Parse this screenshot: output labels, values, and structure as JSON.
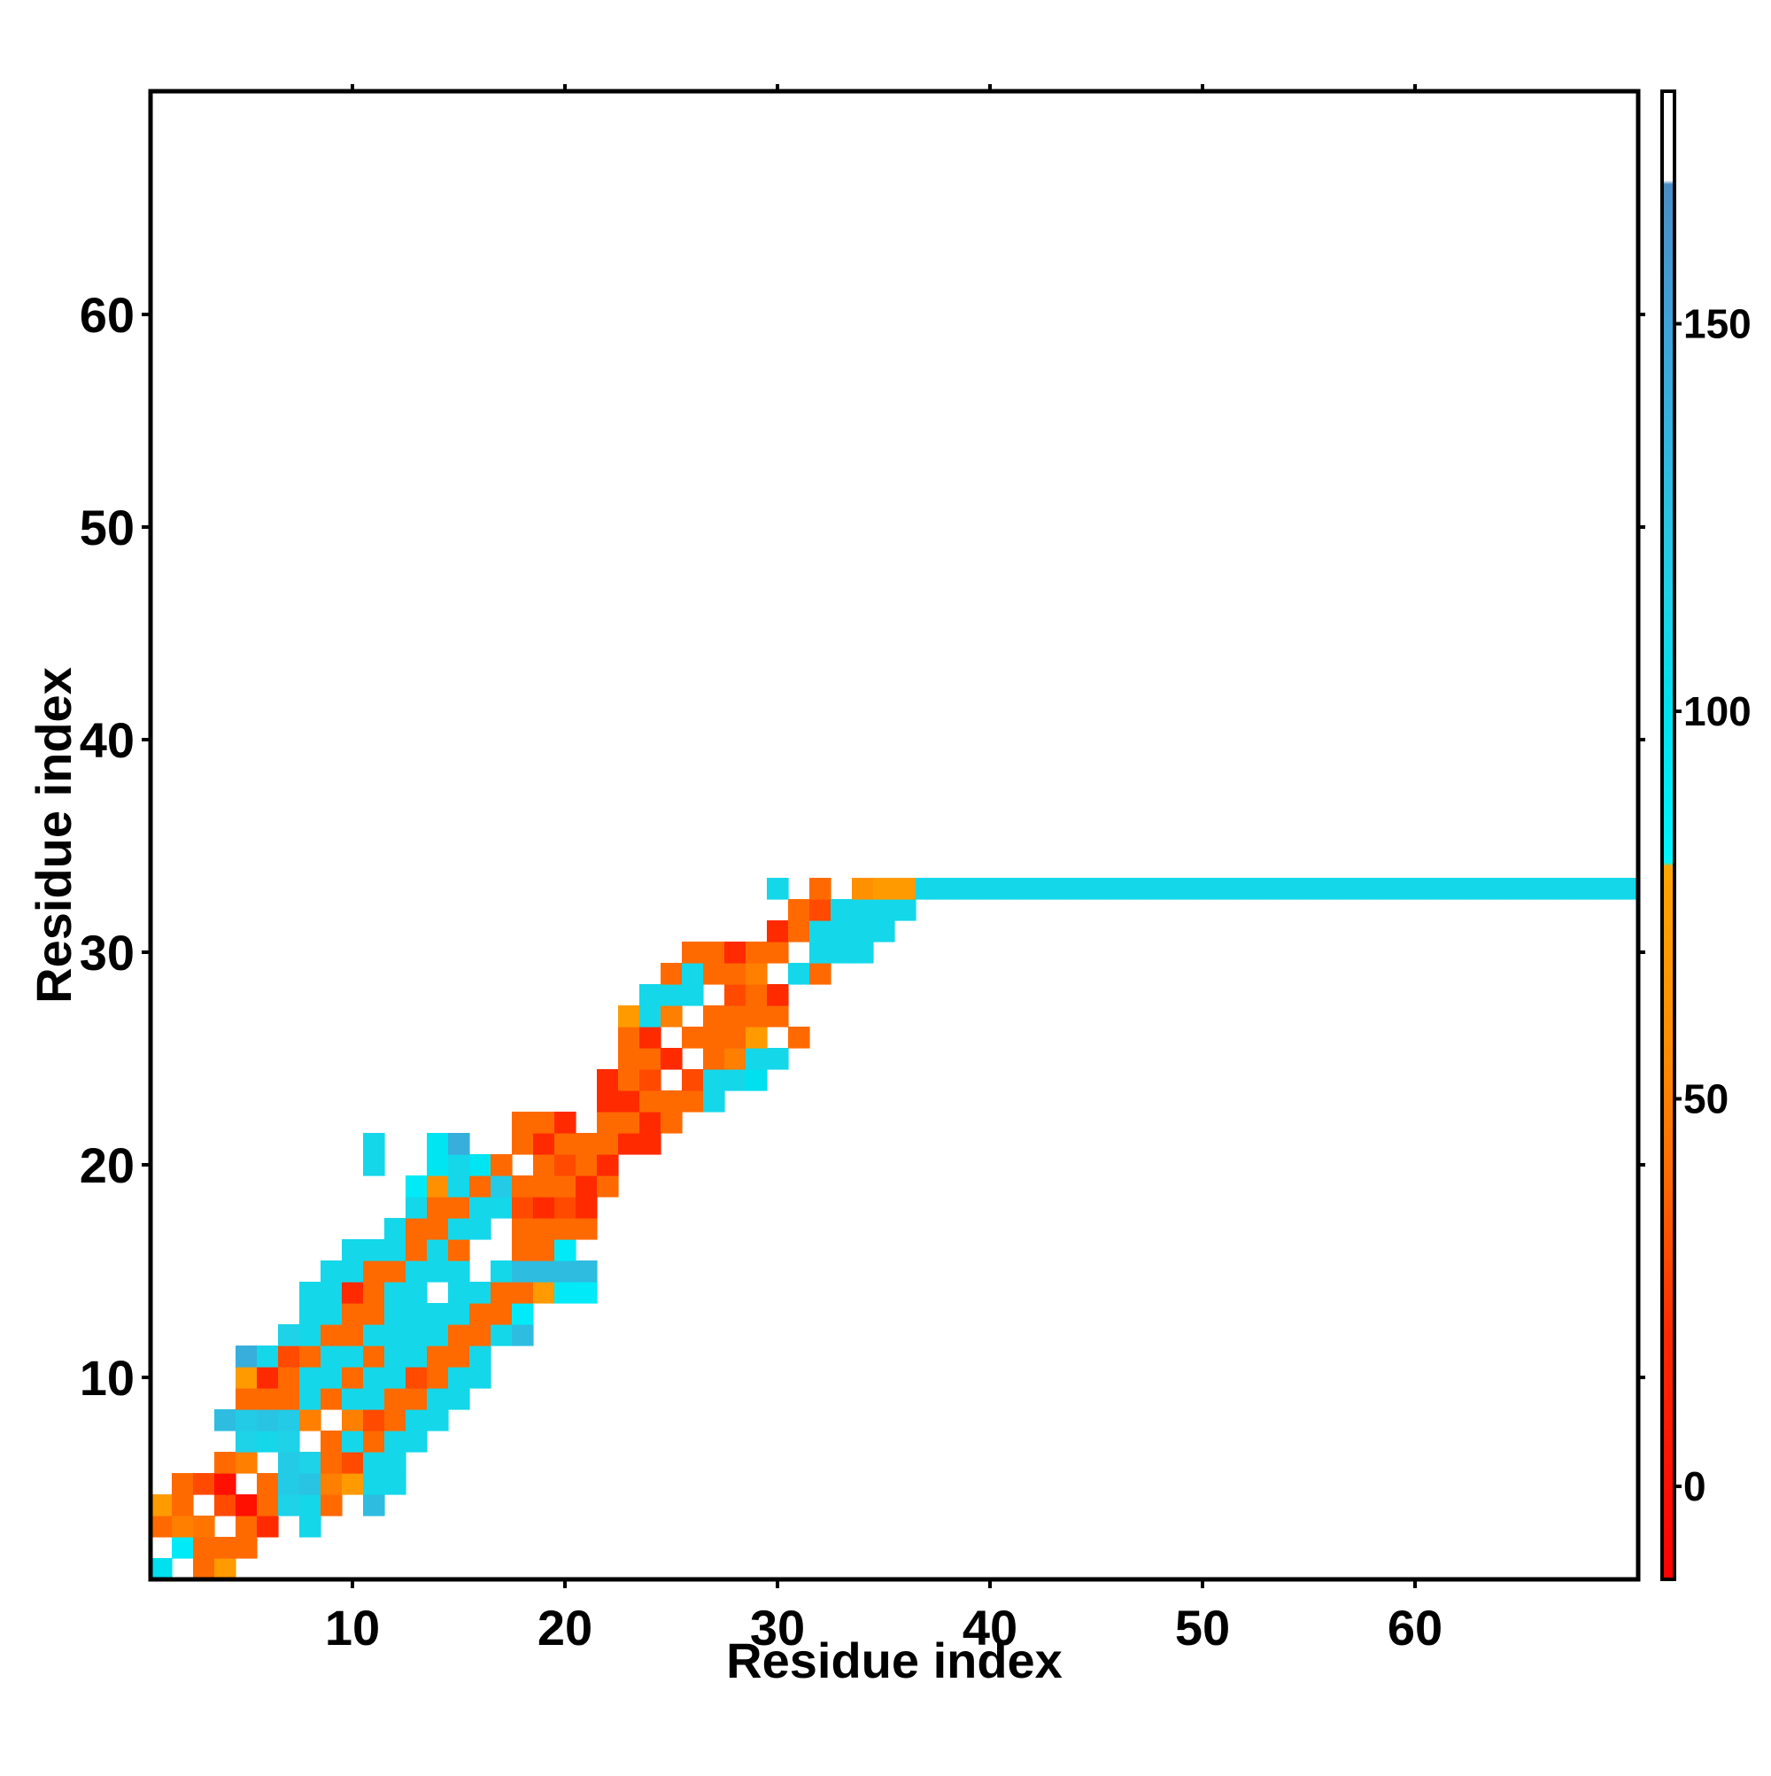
{
  "chart_data": {
    "type": "heatmap",
    "title": "",
    "xlabel": "Residue index",
    "ylabel": "Residue index",
    "xlim": [
      0.5,
      70.5
    ],
    "ylim": [
      0.5,
      70.5
    ],
    "x_ticks": [
      10,
      20,
      30,
      40,
      50,
      60
    ],
    "y_ticks": [
      10,
      20,
      30,
      40,
      50,
      60
    ],
    "colorbar": {
      "range": [
        -12,
        180
      ],
      "ticks": [
        0,
        50,
        100,
        150
      ],
      "stops": [
        {
          "value": -12,
          "color": "#ff0000"
        },
        {
          "value": 20,
          "color": "#ff2a00"
        },
        {
          "value": 40,
          "color": "#ff6a00"
        },
        {
          "value": 56,
          "color": "#ff8c00"
        },
        {
          "value": 80,
          "color": "#ffa500"
        },
        {
          "value": 80.5,
          "color": "#00f5ff"
        },
        {
          "value": 100,
          "color": "#00e0ee"
        },
        {
          "value": 115,
          "color": "#1ed2e8"
        },
        {
          "value": 135,
          "color": "#33b4de"
        },
        {
          "value": 150,
          "color": "#3fa2d8"
        },
        {
          "value": 168,
          "color": "#4a8cc4"
        },
        {
          "value": 168.5,
          "color": "#ffffff"
        },
        {
          "value": 180,
          "color": "#ffffff"
        }
      ]
    },
    "grid": false,
    "note_on_encoding": "cells: [residue_x, residue_y, value]",
    "cells": [
      [
        1,
        1,
        100
      ],
      [
        3,
        1,
        40
      ],
      [
        4,
        1,
        70
      ],
      [
        2,
        2,
        90
      ],
      [
        3,
        2,
        40
      ],
      [
        4,
        2,
        40
      ],
      [
        5,
        2,
        40
      ],
      [
        1,
        3,
        40
      ],
      [
        2,
        3,
        50
      ],
      [
        3,
        3,
        45
      ],
      [
        5,
        3,
        40
      ],
      [
        6,
        3,
        20
      ],
      [
        8,
        3,
        110
      ],
      [
        1,
        4,
        70
      ],
      [
        2,
        4,
        40
      ],
      [
        4,
        4,
        30
      ],
      [
        5,
        4,
        0
      ],
      [
        6,
        4,
        40
      ],
      [
        7,
        4,
        115
      ],
      [
        8,
        4,
        110
      ],
      [
        9,
        4,
        40
      ],
      [
        11,
        4,
        130
      ],
      [
        2,
        5,
        40
      ],
      [
        3,
        5,
        30
      ],
      [
        4,
        5,
        0
      ],
      [
        6,
        5,
        40
      ],
      [
        7,
        5,
        120
      ],
      [
        8,
        5,
        125
      ],
      [
        9,
        5,
        50
      ],
      [
        10,
        5,
        70
      ],
      [
        11,
        5,
        110
      ],
      [
        12,
        5,
        110
      ],
      [
        4,
        6,
        40
      ],
      [
        5,
        6,
        50
      ],
      [
        7,
        6,
        120
      ],
      [
        8,
        6,
        115
      ],
      [
        9,
        6,
        40
      ],
      [
        10,
        6,
        30
      ],
      [
        11,
        6,
        110
      ],
      [
        12,
        6,
        110
      ],
      [
        5,
        7,
        115
      ],
      [
        6,
        7,
        110
      ],
      [
        7,
        7,
        115
      ],
      [
        9,
        7,
        40
      ],
      [
        10,
        7,
        110
      ],
      [
        11,
        7,
        40
      ],
      [
        12,
        7,
        110
      ],
      [
        13,
        7,
        110
      ],
      [
        4,
        8,
        130
      ],
      [
        5,
        8,
        120
      ],
      [
        6,
        8,
        125
      ],
      [
        7,
        8,
        120
      ],
      [
        8,
        8,
        50
      ],
      [
        10,
        8,
        50
      ],
      [
        11,
        8,
        30
      ],
      [
        12,
        8,
        40
      ],
      [
        13,
        8,
        110
      ],
      [
        14,
        8,
        110
      ],
      [
        5,
        9,
        40
      ],
      [
        6,
        9,
        40
      ],
      [
        7,
        9,
        40
      ],
      [
        8,
        9,
        110
      ],
      [
        9,
        9,
        40
      ],
      [
        10,
        9,
        110
      ],
      [
        11,
        9,
        110
      ],
      [
        12,
        9,
        40
      ],
      [
        13,
        9,
        40
      ],
      [
        14,
        9,
        110
      ],
      [
        15,
        9,
        110
      ],
      [
        5,
        10,
        70
      ],
      [
        6,
        10,
        20
      ],
      [
        7,
        10,
        40
      ],
      [
        8,
        10,
        110
      ],
      [
        9,
        10,
        110
      ],
      [
        10,
        10,
        40
      ],
      [
        11,
        10,
        110
      ],
      [
        12,
        10,
        110
      ],
      [
        13,
        10,
        30
      ],
      [
        14,
        10,
        40
      ],
      [
        15,
        10,
        110
      ],
      [
        16,
        10,
        110
      ],
      [
        5,
        11,
        140
      ],
      [
        6,
        11,
        110
      ],
      [
        7,
        11,
        30
      ],
      [
        8,
        11,
        40
      ],
      [
        9,
        11,
        110
      ],
      [
        10,
        11,
        110
      ],
      [
        11,
        11,
        40
      ],
      [
        12,
        11,
        110
      ],
      [
        13,
        11,
        110
      ],
      [
        14,
        11,
        40
      ],
      [
        15,
        11,
        40
      ],
      [
        16,
        11,
        110
      ],
      [
        7,
        12,
        115
      ],
      [
        8,
        12,
        110
      ],
      [
        9,
        12,
        40
      ],
      [
        10,
        12,
        40
      ],
      [
        11,
        12,
        110
      ],
      [
        12,
        12,
        110
      ],
      [
        13,
        12,
        110
      ],
      [
        14,
        12,
        110
      ],
      [
        15,
        12,
        40
      ],
      [
        16,
        12,
        40
      ],
      [
        17,
        12,
        110
      ],
      [
        18,
        12,
        130
      ],
      [
        8,
        13,
        110
      ],
      [
        9,
        13,
        110
      ],
      [
        10,
        13,
        40
      ],
      [
        11,
        13,
        40
      ],
      [
        12,
        13,
        110
      ],
      [
        13,
        13,
        110
      ],
      [
        14,
        13,
        110
      ],
      [
        15,
        13,
        110
      ],
      [
        16,
        13,
        40
      ],
      [
        17,
        13,
        40
      ],
      [
        18,
        13,
        90
      ],
      [
        8,
        14,
        110
      ],
      [
        9,
        14,
        110
      ],
      [
        10,
        14,
        20
      ],
      [
        11,
        14,
        40
      ],
      [
        12,
        14,
        110
      ],
      [
        13,
        14,
        110
      ],
      [
        15,
        14,
        110
      ],
      [
        16,
        14,
        110
      ],
      [
        17,
        14,
        40
      ],
      [
        18,
        14,
        40
      ],
      [
        19,
        14,
        70
      ],
      [
        20,
        14,
        90
      ],
      [
        21,
        14,
        90
      ],
      [
        9,
        15,
        110
      ],
      [
        10,
        15,
        110
      ],
      [
        11,
        15,
        40
      ],
      [
        12,
        15,
        40
      ],
      [
        13,
        15,
        110
      ],
      [
        14,
        15,
        110
      ],
      [
        15,
        15,
        110
      ],
      [
        17,
        15,
        110
      ],
      [
        18,
        15,
        130
      ],
      [
        19,
        15,
        130
      ],
      [
        20,
        15,
        130
      ],
      [
        21,
        15,
        130
      ],
      [
        10,
        16,
        110
      ],
      [
        11,
        16,
        110
      ],
      [
        12,
        16,
        110
      ],
      [
        13,
        16,
        40
      ],
      [
        14,
        16,
        110
      ],
      [
        15,
        16,
        40
      ],
      [
        18,
        16,
        40
      ],
      [
        19,
        16,
        40
      ],
      [
        20,
        16,
        90
      ],
      [
        12,
        17,
        110
      ],
      [
        13,
        17,
        40
      ],
      [
        14,
        17,
        40
      ],
      [
        15,
        17,
        110
      ],
      [
        16,
        17,
        110
      ],
      [
        18,
        17,
        40
      ],
      [
        19,
        17,
        40
      ],
      [
        20,
        17,
        40
      ],
      [
        21,
        17,
        40
      ],
      [
        13,
        18,
        110
      ],
      [
        14,
        18,
        40
      ],
      [
        15,
        18,
        40
      ],
      [
        16,
        18,
        110
      ],
      [
        17,
        18,
        110
      ],
      [
        18,
        18,
        30
      ],
      [
        19,
        18,
        20
      ],
      [
        20,
        18,
        30
      ],
      [
        21,
        18,
        20
      ],
      [
        13,
        19,
        90
      ],
      [
        14,
        19,
        60
      ],
      [
        15,
        19,
        110
      ],
      [
        16,
        19,
        40
      ],
      [
        17,
        19,
        120
      ],
      [
        18,
        19,
        40
      ],
      [
        19,
        19,
        40
      ],
      [
        20,
        19,
        40
      ],
      [
        21,
        19,
        20
      ],
      [
        22,
        19,
        40
      ],
      [
        11,
        20,
        110
      ],
      [
        14,
        20,
        95
      ],
      [
        15,
        20,
        110
      ],
      [
        16,
        20,
        95
      ],
      [
        17,
        20,
        40
      ],
      [
        19,
        20,
        40
      ],
      [
        20,
        20,
        30
      ],
      [
        21,
        20,
        40
      ],
      [
        22,
        20,
        20
      ],
      [
        11,
        21,
        110
      ],
      [
        14,
        21,
        95
      ],
      [
        15,
        21,
        140
      ],
      [
        18,
        21,
        40
      ],
      [
        19,
        21,
        20
      ],
      [
        20,
        21,
        40
      ],
      [
        21,
        21,
        40
      ],
      [
        22,
        21,
        40
      ],
      [
        23,
        21,
        20
      ],
      [
        24,
        21,
        20
      ],
      [
        18,
        22,
        40
      ],
      [
        19,
        22,
        40
      ],
      [
        20,
        22,
        20
      ],
      [
        22,
        22,
        40
      ],
      [
        23,
        22,
        40
      ],
      [
        24,
        22,
        20
      ],
      [
        25,
        22,
        40
      ],
      [
        22,
        23,
        20
      ],
      [
        23,
        23,
        20
      ],
      [
        24,
        23,
        40
      ],
      [
        25,
        23,
        40
      ],
      [
        26,
        23,
        40
      ],
      [
        27,
        23,
        110
      ],
      [
        22,
        24,
        20
      ],
      [
        23,
        24,
        40
      ],
      [
        24,
        24,
        30
      ],
      [
        26,
        24,
        30
      ],
      [
        27,
        24,
        110
      ],
      [
        28,
        24,
        110
      ],
      [
        29,
        24,
        100
      ],
      [
        23,
        25,
        40
      ],
      [
        24,
        25,
        40
      ],
      [
        25,
        25,
        20
      ],
      [
        27,
        25,
        40
      ],
      [
        28,
        25,
        50
      ],
      [
        29,
        25,
        110
      ],
      [
        30,
        25,
        110
      ],
      [
        23,
        26,
        40
      ],
      [
        24,
        26,
        20
      ],
      [
        26,
        26,
        40
      ],
      [
        27,
        26,
        40
      ],
      [
        28,
        26,
        40
      ],
      [
        29,
        26,
        70
      ],
      [
        31,
        26,
        40
      ],
      [
        23,
        27,
        70
      ],
      [
        24,
        27,
        110
      ],
      [
        25,
        27,
        50
      ],
      [
        27,
        27,
        40
      ],
      [
        28,
        27,
        40
      ],
      [
        29,
        27,
        40
      ],
      [
        30,
        27,
        40
      ],
      [
        24,
        28,
        110
      ],
      [
        25,
        28,
        110
      ],
      [
        26,
        28,
        110
      ],
      [
        28,
        28,
        30
      ],
      [
        29,
        28,
        40
      ],
      [
        30,
        28,
        20
      ],
      [
        25,
        29,
        40
      ],
      [
        26,
        29,
        110
      ],
      [
        27,
        29,
        40
      ],
      [
        28,
        29,
        40
      ],
      [
        29,
        29,
        50
      ],
      [
        31,
        29,
        110
      ],
      [
        32,
        29,
        40
      ],
      [
        26,
        30,
        40
      ],
      [
        27,
        30,
        40
      ],
      [
        28,
        30,
        20
      ],
      [
        29,
        30,
        40
      ],
      [
        30,
        30,
        40
      ],
      [
        32,
        30,
        110
      ],
      [
        33,
        30,
        110
      ],
      [
        34,
        30,
        110
      ],
      [
        30,
        31,
        20
      ],
      [
        31,
        31,
        40
      ],
      [
        32,
        31,
        110
      ],
      [
        33,
        31,
        110
      ],
      [
        34,
        31,
        110
      ],
      [
        35,
        31,
        110
      ],
      [
        31,
        32,
        40
      ],
      [
        32,
        32,
        30
      ],
      [
        33,
        32,
        110
      ],
      [
        34,
        32,
        110
      ],
      [
        35,
        32,
        110
      ],
      [
        36,
        32,
        110
      ],
      [
        30,
        33,
        110
      ],
      [
        32,
        33,
        40
      ],
      [
        34,
        33,
        60
      ],
      [
        35,
        33,
        70
      ],
      [
        36,
        33,
        70
      ],
      [
        37,
        33,
        110
      ],
      [
        38,
        33,
        110
      ],
      [
        39,
        33,
        110
      ],
      [
        40,
        33,
        110
      ],
      [
        41,
        33,
        110
      ],
      [
        42,
        33,
        110
      ],
      [
        43,
        33,
        110
      ],
      [
        44,
        33,
        110
      ],
      [
        45,
        33,
        110
      ],
      [
        46,
        33,
        110
      ],
      [
        47,
        33,
        110
      ],
      [
        48,
        33,
        110
      ],
      [
        49,
        33,
        110
      ],
      [
        50,
        33,
        110
      ],
      [
        51,
        33,
        110
      ],
      [
        52,
        33,
        110
      ],
      [
        53,
        33,
        110
      ],
      [
        54,
        33,
        110
      ],
      [
        55,
        33,
        110
      ],
      [
        56,
        33,
        110
      ],
      [
        57,
        33,
        110
      ],
      [
        58,
        33,
        110
      ],
      [
        59,
        33,
        110
      ],
      [
        60,
        33,
        110
      ],
      [
        61,
        33,
        110
      ],
      [
        62,
        33,
        110
      ],
      [
        63,
        33,
        110
      ],
      [
        64,
        33,
        110
      ],
      [
        65,
        33,
        110
      ],
      [
        66,
        33,
        110
      ],
      [
        67,
        33,
        110
      ],
      [
        68,
        33,
        110
      ],
      [
        69,
        33,
        110
      ],
      [
        70,
        33,
        110
      ]
    ]
  }
}
